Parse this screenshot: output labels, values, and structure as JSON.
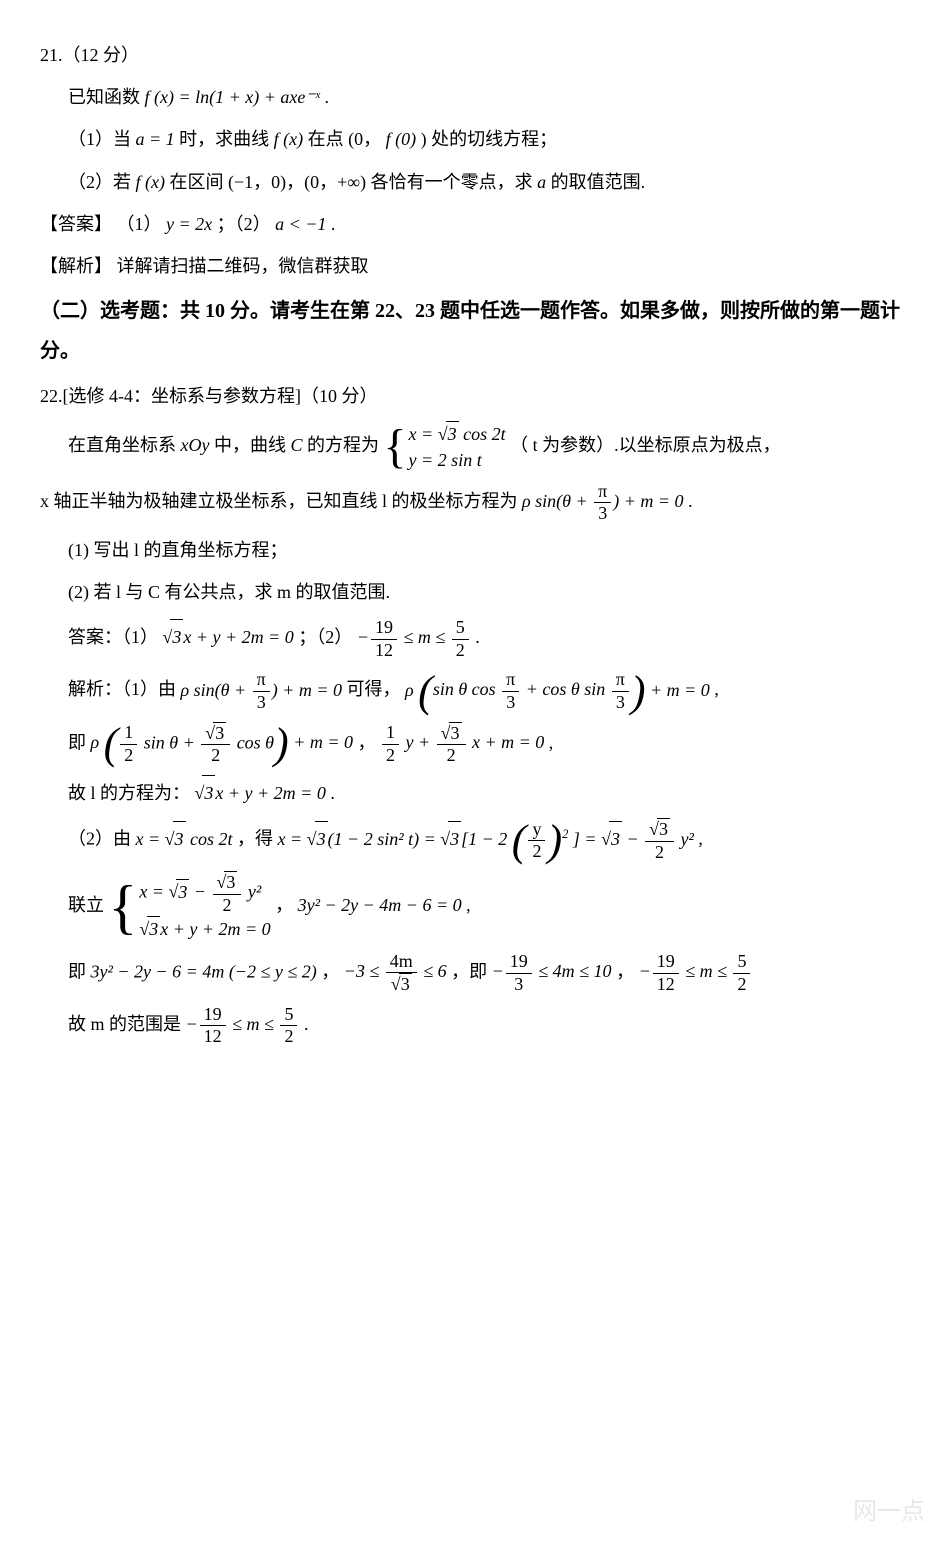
{
  "q21": {
    "header": "21.（12 分）",
    "given_pre": "已知函数 ",
    "given_math": "f (x) = ln(1 + x) + axe⁻ˣ",
    "given_post": " .",
    "p1_pre": "（1）当 ",
    "p1_a": "a = 1",
    "p1_mid": " 时，求曲线 ",
    "p1_fx": "f (x)",
    "p1_mid2": " 在点 (0，",
    "p1_f0": "f (0)",
    "p1_post": ") 处的切线方程；",
    "p2_pre": "（2）若 ",
    "p2_fx": "f (x)",
    "p2_mid": " 在区间 (−1，0)，(0，+∞) 各恰有一个零点，求 ",
    "p2_a": "a",
    "p2_post": " 的取值范围.",
    "ans_label": "【答案】",
    "ans1_pre": "（1） ",
    "ans1": "y = 2x",
    "ans_sep": "；（2） ",
    "ans2": "a < −1",
    "ans_dot": " .",
    "sol_label": "【解析】",
    "sol_text": "详解请扫描二维码，微信群获取"
  },
  "section2": {
    "title": "（二）选考题：共 10 分。请考生在第 22、23 题中任选一题作答。如果多做，则按所做的第一题计分。"
  },
  "q22": {
    "header": "22.[选修 4-4：坐标系与参数方程]（10 分）",
    "stem_pre": "在直角坐标系 ",
    "stem_xoy": "xOy",
    "stem_mid": " 中，曲线 ",
    "stem_C": "C",
    "stem_mid2": " 的方程为 ",
    "sys1_row1_pre": "x = ",
    "sys1_row1_sqrt": "3",
    "sys1_row1_post": " cos 2t",
    "sys1_row2": "y = 2 sin t",
    "stem_post": "（ t 为参数）.以坐标原点为极点，",
    "stem2_pre": "x 轴正半轴为极轴建立极坐标系，已知直线 l 的极坐标方程为 ",
    "stem2_math_pre": "ρ sin(θ + ",
    "stem2_frac_num": "π",
    "stem2_frac_den": "3",
    "stem2_math_post": ") + m = 0",
    "stem2_dot": " .",
    "p1": "(1) 写出 l 的直角坐标方程；",
    "p2": "(2) 若 l 与 C 有公共点，求 m 的取值范围.",
    "ans_label": "答案：（1） ",
    "ans1_sqrt": "3",
    "ans1_post": "x + y + 2m = 0",
    "ans_sep": " ；（2） ",
    "ans2_pre": "−",
    "ans2_f1_num": "19",
    "ans2_f1_den": "12",
    "ans2_mid": " ≤ m ≤ ",
    "ans2_f2_num": "5",
    "ans2_f2_den": "2",
    "ans2_dot": " .",
    "sol_label": "解析：（1）由 ",
    "sol1_eq1_pre": "ρ sin(θ + ",
    "sol1_eq1_num": "π",
    "sol1_eq1_den": "3",
    "sol1_eq1_post": ") + m = 0",
    "sol1_mid": " 可得， ",
    "sol1_eq2_rho": "ρ",
    "sol1_eq2_inner_pre": "sin θ cos ",
    "sol1_eq2_f1_num": "π",
    "sol1_eq2_f1_den": "3",
    "sol1_eq2_inner_plus": " + cos θ sin ",
    "sol1_eq2_f2_num": "π",
    "sol1_eq2_f2_den": "3",
    "sol1_eq2_post": " + m = 0",
    "sol1_comma": " ,",
    "sol2_pre": "即 ",
    "sol2_rho": "ρ",
    "sol2_f1_num": "1",
    "sol2_f1_den": "2",
    "sol2_mid1": " sin θ + ",
    "sol2_f2_num_sqrt": "3",
    "sol2_f2_den": "2",
    "sol2_mid2": " cos θ",
    "sol2_post": " + m = 0",
    "sol2_comma": " ，",
    "sol2_eq2_f1_num": "1",
    "sol2_eq2_f1_den": "2",
    "sol2_eq2_mid1": " y + ",
    "sol2_eq2_f2_num_sqrt": "3",
    "sol2_eq2_f2_den": "2",
    "sol2_eq2_post": " x + m = 0",
    "sol2_comma2": " ,",
    "sol3_pre": "故 l 的方程为： ",
    "sol3_sqrt": "3",
    "sol3_post": "x + y + 2m = 0",
    "sol3_dot": " .",
    "sol4_pre": "（2）由 ",
    "sol4_eq1_pre": "x = ",
    "sol4_eq1_sqrt": "3",
    "sol4_eq1_post": " cos 2t",
    "sol4_mid": " ，得 ",
    "sol4_eq2_pre": "x = ",
    "sol4_eq2_sqrt1": "3",
    "sol4_eq2_mid1": "(1 − 2 sin² t) = ",
    "sol4_eq2_sqrt2": "3",
    "sol4_eq2_mid2": "[1 − 2",
    "sol4_eq2_frac_num": "y",
    "sol4_eq2_frac_den": "2",
    "sol4_eq2_sup": "2",
    "sol4_eq2_mid3": "] = ",
    "sol4_eq2_sqrt3": "3",
    "sol4_eq2_mid4": " − ",
    "sol4_eq2_f2_num_sqrt": "3",
    "sol4_eq2_f2_den": "2",
    "sol4_eq2_post": " y²",
    "sol4_comma": " ,",
    "sol5_pre": "联立 ",
    "sol5_sys_r1_pre": "x = ",
    "sol5_sys_r1_sqrt": "3",
    "sol5_sys_r1_mid": " − ",
    "sol5_sys_r1_fnum_sqrt": "3",
    "sol5_sys_r1_fden": "2",
    "sol5_sys_r1_post": " y²",
    "sol5_sys_r2_sqrt": "3",
    "sol5_sys_r2_post": "x + y + 2m = 0",
    "sol5_comma1": " ， ",
    "sol5_eq": "3y² − 2y − 4m − 6 = 0",
    "sol5_comma2": " ,",
    "sol6_pre": "即  ",
    "sol6_eq1": "3y² − 2y − 6 = 4m (−2 ≤ y ≤ 2)",
    "sol6_comma1": " ， ",
    "sol6_ineq1_pre": "−3 ≤ ",
    "sol6_ineq1_num": "4m",
    "sol6_ineq1_den_sqrt": "3",
    "sol6_ineq1_post": " ≤ 6",
    "sol6_comma2": " ，即 ",
    "sol6_ineq2_pre": "−",
    "sol6_ineq2_f1_num": "19",
    "sol6_ineq2_f1_den": "3",
    "sol6_ineq2_mid": " ≤ 4m ≤ 10",
    "sol6_comma3": " ， ",
    "sol6_ineq3_pre": "−",
    "sol6_ineq3_f1_num": "19",
    "sol6_ineq3_f1_den": "12",
    "sol6_ineq3_mid": " ≤ m ≤ ",
    "sol6_ineq3_f2_num": "5",
    "sol6_ineq3_f2_den": "2",
    "sol7_pre": "故 m 的范围是 ",
    "sol7_neg": "−",
    "sol7_f1_num": "19",
    "sol7_f1_den": "12",
    "sol7_mid": " ≤ m ≤ ",
    "sol7_f2_num": "5",
    "sol7_f2_den": "2",
    "sol7_dot": " ."
  },
  "watermark": "网一点"
}
